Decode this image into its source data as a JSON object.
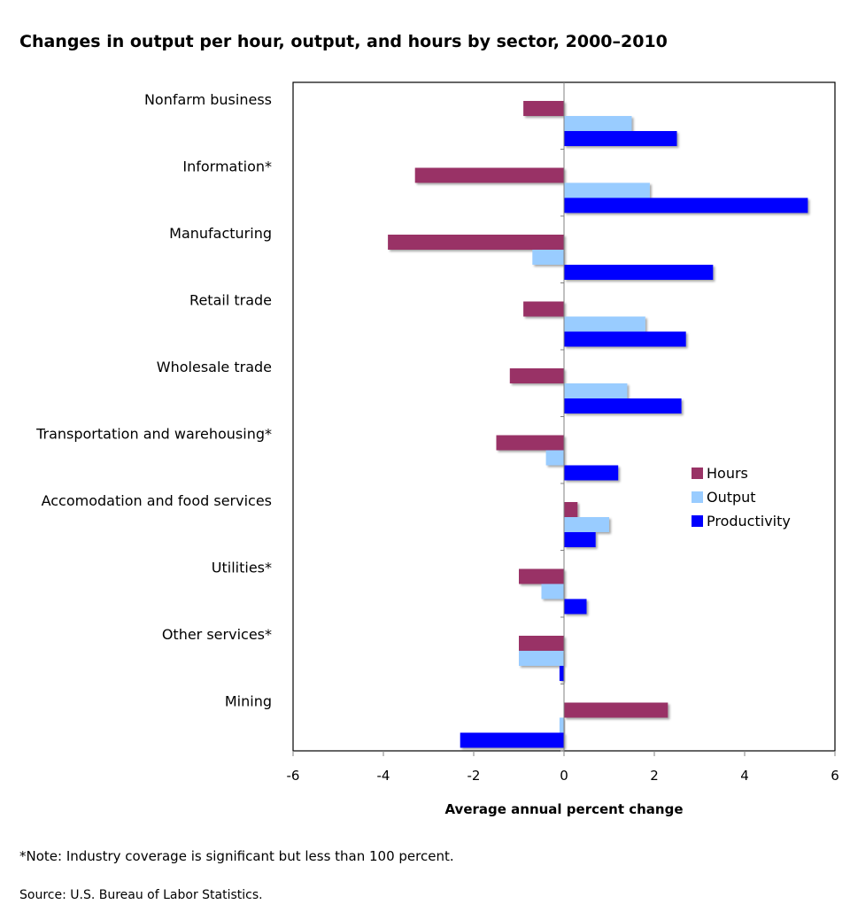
{
  "chart_data": {
    "type": "bar",
    "orientation": "horizontal",
    "title": "Changes in output per hour, output, and hours by sector, 2000–2010",
    "xlabel": "Average annual  percent change",
    "ylabel": "",
    "xlim": [
      -6,
      6
    ],
    "xticks": [
      -6,
      -4,
      -2,
      0,
      2,
      4,
      6
    ],
    "grid": false,
    "legend_position": "right",
    "categories": [
      "Nonfarm business",
      "Information*",
      "Manufacturing",
      "Retail trade",
      "Wholesale trade",
      "Transportation and warehousing*",
      "Accomodation and food services",
      "Utilities*",
      "Other services*",
      "Mining"
    ],
    "series": [
      {
        "name": "Hours",
        "color": "#993366",
        "values": [
          -0.9,
          -3.3,
          -3.9,
          -0.9,
          -1.2,
          -1.5,
          0.3,
          -1.0,
          -1.0,
          2.3
        ]
      },
      {
        "name": "Output",
        "color": "#99CCFF",
        "values": [
          1.5,
          1.9,
          -0.7,
          1.8,
          1.4,
          -0.4,
          1.0,
          -0.5,
          -1.0,
          -0.1
        ]
      },
      {
        "name": "Productivity",
        "color": "#0000FF",
        "values": [
          2.5,
          5.4,
          3.3,
          2.7,
          2.6,
          1.2,
          0.7,
          0.5,
          -0.1,
          -2.3
        ]
      }
    ]
  },
  "footer": {
    "note": "*Note: Industry coverage is significant  but less than 100 percent.",
    "source": "Source: U.S. Bureau of Labor Statistics."
  }
}
